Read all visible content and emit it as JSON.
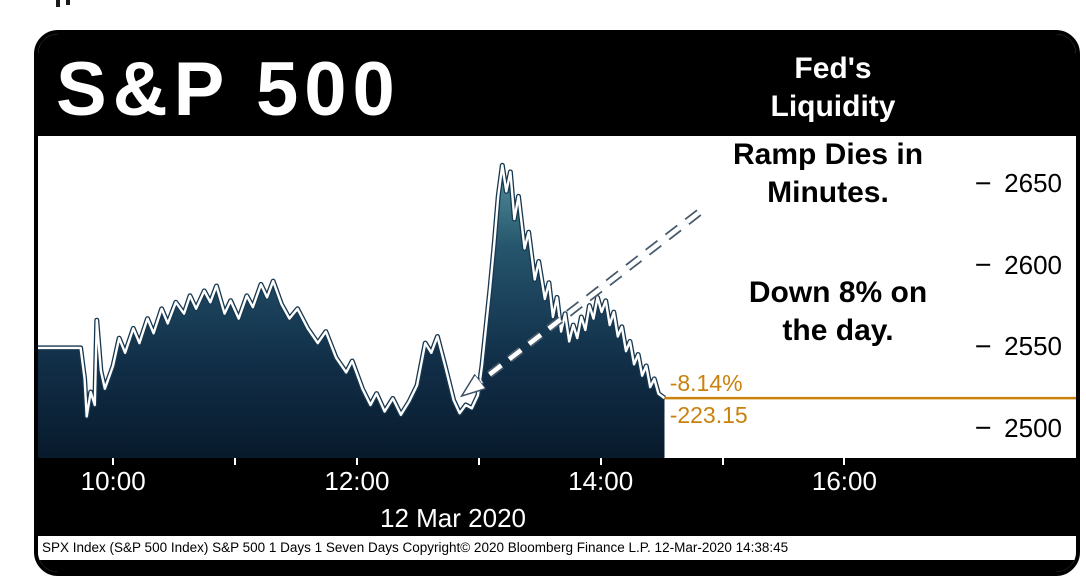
{
  "window": {
    "title": "S&P 500",
    "annotation_top": [
      "Fed's",
      "Liquidity"
    ],
    "annotation_mid": [
      "Ramp Dies in",
      "Minutes."
    ],
    "annotation_down": [
      "Down 8% on",
      "the day."
    ],
    "footer": "SPX Index (S&P 500 Index) S&P 500 1 Days 1 Seven Days Copyright© 2020 Bloomberg Finance L.P. 12-Mar-2020 14:38:45"
  },
  "colors": {
    "panel_black": "#000000",
    "accent_orange": "#C9820E",
    "line_white": "#FFFFFF",
    "area_top": "#56939F",
    "area_bottom": "#081A2C"
  },
  "chart_data": {
    "type": "area",
    "title": "S&P 500 intraday price",
    "date": "12 Mar 2020",
    "x_axis": {
      "unit": "minutes since 09:30",
      "range_minutes": [
        -7,
        505
      ],
      "tick_labels": [
        {
          "label": "10:00",
          "minutes": 30
        },
        {
          "label": "12:00",
          "minutes": 150
        },
        {
          "label": "14:00",
          "minutes": 270
        },
        {
          "label": "16:00",
          "minutes": 390
        }
      ],
      "date_label": "12 Mar 2020"
    },
    "y_axis": {
      "range": [
        2481.5,
        2679
      ],
      "tick_labels": [
        2650,
        2600,
        2550,
        2500
      ],
      "grid": false
    },
    "legend": null,
    "series": [
      {
        "name": "SPX Index",
        "points": [
          [
            -7,
            2549
          ],
          [
            14,
            2549
          ],
          [
            16,
            2530
          ],
          [
            17,
            2507
          ],
          [
            19,
            2522
          ],
          [
            21,
            2514
          ],
          [
            22,
            2566
          ],
          [
            24,
            2535
          ],
          [
            26,
            2524
          ],
          [
            28,
            2531
          ],
          [
            30,
            2538
          ],
          [
            33,
            2555
          ],
          [
            36,
            2546
          ],
          [
            40,
            2561
          ],
          [
            43,
            2552
          ],
          [
            47,
            2567
          ],
          [
            50,
            2558
          ],
          [
            54,
            2573
          ],
          [
            57,
            2564
          ],
          [
            61,
            2577
          ],
          [
            65,
            2570
          ],
          [
            68,
            2581
          ],
          [
            71,
            2573
          ],
          [
            75,
            2584
          ],
          [
            78,
            2577
          ],
          [
            81,
            2587
          ],
          [
            85,
            2570
          ],
          [
            88,
            2578
          ],
          [
            92,
            2567
          ],
          [
            96,
            2581
          ],
          [
            99,
            2574
          ],
          [
            103,
            2588
          ],
          [
            106,
            2580
          ],
          [
            109,
            2590
          ],
          [
            113,
            2576
          ],
          [
            117,
            2567
          ],
          [
            121,
            2573
          ],
          [
            126,
            2561
          ],
          [
            131,
            2552
          ],
          [
            135,
            2559
          ],
          [
            140,
            2543
          ],
          [
            145,
            2534
          ],
          [
            148,
            2541
          ],
          [
            153,
            2524
          ],
          [
            157,
            2514
          ],
          [
            160,
            2521
          ],
          [
            164,
            2510
          ],
          [
            168,
            2518
          ],
          [
            172,
            2508
          ],
          [
            176,
            2516
          ],
          [
            180,
            2526
          ],
          [
            184,
            2552
          ],
          [
            187,
            2546
          ],
          [
            190,
            2556
          ],
          [
            194,
            2537
          ],
          [
            198,
            2517
          ],
          [
            201,
            2509
          ],
          [
            204,
            2514
          ],
          [
            207,
            2512
          ],
          [
            210,
            2520
          ],
          [
            212,
            2538
          ],
          [
            214,
            2562
          ],
          [
            216,
            2586
          ],
          [
            218,
            2612
          ],
          [
            220,
            2642
          ],
          [
            222,
            2661
          ],
          [
            224,
            2645
          ],
          [
            226,
            2657
          ],
          [
            228,
            2628
          ],
          [
            230,
            2642
          ],
          [
            233,
            2610
          ],
          [
            235,
            2620
          ],
          [
            238,
            2591
          ],
          [
            240,
            2602
          ],
          [
            243,
            2579
          ],
          [
            245,
            2589
          ],
          [
            247,
            2568
          ],
          [
            249,
            2580
          ],
          [
            251,
            2559
          ],
          [
            253,
            2570
          ],
          [
            255,
            2553
          ],
          [
            257,
            2563
          ],
          [
            259,
            2555
          ],
          [
            261,
            2568
          ],
          [
            263,
            2560
          ],
          [
            265,
            2575
          ],
          [
            267,
            2567
          ],
          [
            269,
            2580
          ],
          [
            271,
            2571
          ],
          [
            273,
            2578
          ],
          [
            275,
            2563
          ],
          [
            277,
            2571
          ],
          [
            279,
            2556
          ],
          [
            281,
            2562
          ],
          [
            283,
            2547
          ],
          [
            285,
            2553
          ],
          [
            287,
            2539
          ],
          [
            289,
            2545
          ],
          [
            291,
            2532
          ],
          [
            293,
            2538
          ],
          [
            295,
            2525
          ],
          [
            297,
            2530
          ],
          [
            299,
            2521
          ],
          [
            302,
            2518.23
          ]
        ]
      }
    ],
    "last_trade": {
      "price": 2518.23,
      "pct_change": "-8.14%",
      "net_change": "-223.15"
    },
    "annotations": {
      "headline": "Fed's Liquidity Ramp Dies in Minutes.",
      "subnote": "Down 8% on the day.",
      "arrow": {
        "from": {
          "t": 319,
          "price": 2632
        },
        "to": {
          "t": 203.5,
          "price": 2521
        }
      }
    }
  }
}
